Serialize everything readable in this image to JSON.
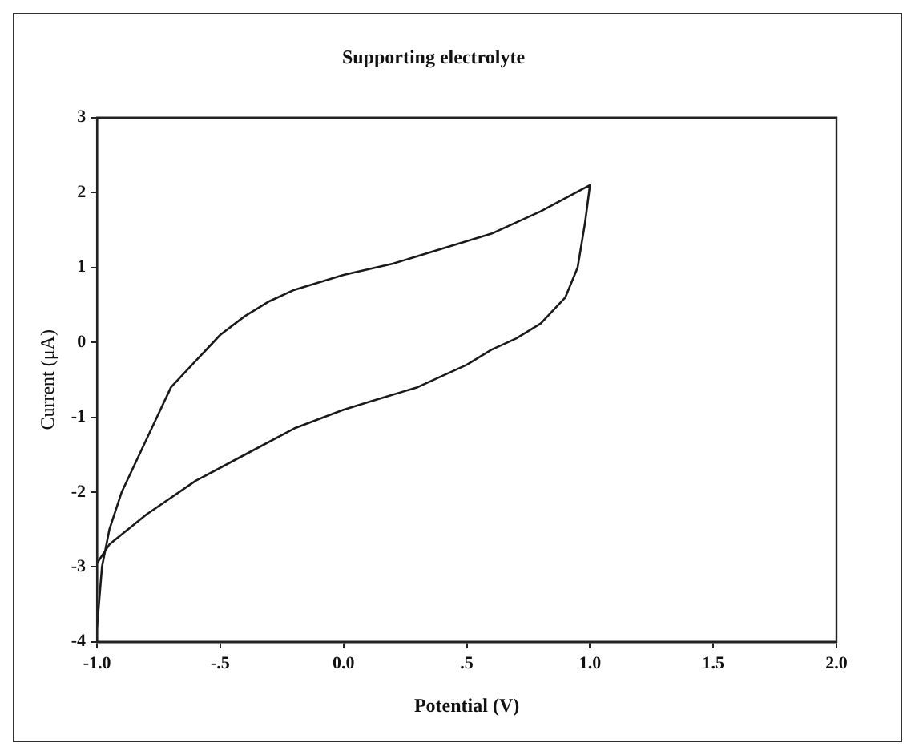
{
  "chart_data": {
    "type": "line",
    "title": "Supporting electrolyte",
    "xlabel": "Potential (V)",
    "ylabel": "Current (μA)",
    "xlim": [
      -1.0,
      2.0
    ],
    "xticks": [
      {
        "value": -1.0,
        "label": "-1.0"
      },
      {
        "value": -0.5,
        "label": "-.5"
      },
      {
        "value": 0,
        "label": "0.0"
      },
      {
        "value": 0.5,
        "label": ".5"
      },
      {
        "value": 1.0,
        "label": "1.0"
      },
      {
        "value": 1.5,
        "label": "1.5"
      },
      {
        "value": 2.0,
        "label": "2.0"
      }
    ],
    "ylim": [
      -4,
      3
    ],
    "yticks": [
      -4,
      -3,
      -2,
      -1,
      0,
      1,
      2,
      3
    ],
    "grid": false,
    "legend": false,
    "marker": "none",
    "line_style": "solid",
    "series": [
      {
        "color": "#1a1a1a",
        "x": [
          -1.0,
          -0.98,
          -0.95,
          -0.9,
          -0.8,
          -0.7,
          -0.6,
          -0.5,
          -0.4,
          -0.3,
          -0.2,
          0,
          0.2,
          0.4,
          0.6,
          0.8,
          1.0,
          0.98,
          0.95,
          0.9,
          0.8,
          0.7,
          0.6,
          0.5,
          0.3,
          0.1,
          0,
          -0.2,
          -0.4,
          -0.6,
          -0.8,
          -0.95,
          -1.0
        ],
        "values": [
          -3.8,
          -3.0,
          -2.5,
          -2.0,
          -1.3,
          -0.6,
          -0.25,
          0.1,
          0.35,
          0.55,
          0.7,
          0.9,
          1.05,
          1.25,
          1.45,
          1.75,
          2.1,
          1.6,
          1.0,
          0.6,
          0.25,
          0.05,
          -0.1,
          -0.3,
          -0.6,
          -0.8,
          -0.9,
          -1.15,
          -1.5,
          -1.85,
          -2.3,
          -2.7,
          -2.95
        ]
      }
    ]
  }
}
